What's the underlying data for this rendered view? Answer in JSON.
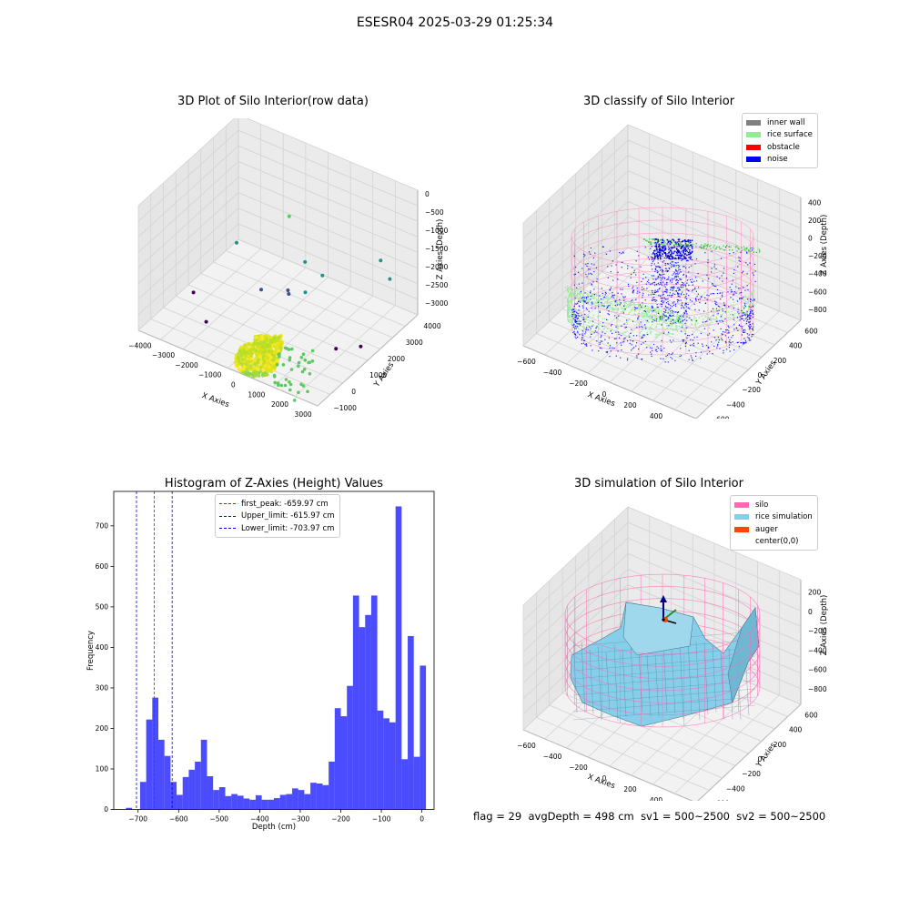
{
  "suptitle": "ESESR04 2025-03-29 01:25:34",
  "chart_data": [
    {
      "type": "scatter",
      "title": "3D Plot of Silo Interior(row data)",
      "xlabel": "X Axies",
      "ylabel": "Y Axies",
      "zlabel": "Z Axies (Depth)",
      "xticks": [
        "−4000",
        "−3000",
        "−2000",
        "−1000",
        "0",
        "1000",
        "2000",
        "3000"
      ],
      "yticks": [
        "−1000",
        "0",
        "1000",
        "2000",
        "3000",
        "4000"
      ],
      "zticks": [
        "0",
        "−500",
        "−1000",
        "−1500",
        "−2000",
        "−2500",
        "−3000"
      ],
      "xlim": [
        -4300,
        3500
      ],
      "ylim": [
        -1300,
        4300
      ],
      "zlim": [
        -3300,
        100
      ],
      "colormap": "viridis",
      "points": [
        {
          "x": -300,
          "y": 2000,
          "z": -600
        },
        {
          "x": 2900,
          "y": 3000,
          "z": -1400
        },
        {
          "x": 3300,
          "y": 3000,
          "z": -1800
        },
        {
          "x": -2200,
          "y": 1500,
          "z": -1600
        },
        {
          "x": -3300,
          "y": 500,
          "z": -2800
        },
        {
          "x": 3200,
          "y": 1500,
          "z": -3000
        },
        {
          "x": -200,
          "y": 1800,
          "z": -2500
        },
        {
          "x": -900,
          "y": 1200,
          "z": -2400
        },
        {
          "x": 700,
          "y": 1600,
          "z": -1400
        },
        {
          "x": 1300,
          "y": 1800,
          "z": -1700
        },
        {
          "x": -2200,
          "y": -200,
          "z": -3000
        },
        {
          "x": 2900,
          "y": 500,
          "z": -2700
        },
        {
          "x": 1100,
          "y": 1100,
          "z": -1900
        },
        {
          "x": 300,
          "y": 1200,
          "z": -2200
        }
      ]
    },
    {
      "type": "scatter",
      "title": "3D classify of Silo Interior",
      "xlabel": "X Axies",
      "ylabel": "Y Axies",
      "zlabel": "Z Axies (Depth)",
      "xticks": [
        "−600",
        "−400",
        "−200",
        "0",
        "200",
        "400",
        "600"
      ],
      "yticks": [
        "−600",
        "−400",
        "−200",
        "0",
        "200",
        "400",
        "600"
      ],
      "zticks": [
        "400",
        "200",
        "0",
        "−200",
        "−400",
        "−600",
        "−800"
      ],
      "legend": [
        {
          "label": "inner wall",
          "color": "#808080"
        },
        {
          "label": "rice surface",
          "color": "#90ee90"
        },
        {
          "label": "obstacle",
          "color": "#ff0000"
        },
        {
          "label": "noise",
          "color": "#0000ff"
        }
      ],
      "legend_position": "top-right"
    },
    {
      "type": "bar",
      "title": "Histogram of Z-Axies (Height) Values",
      "xlabel": "Depth (cm)",
      "ylabel": "Frequency",
      "xlim": [
        -760,
        30
      ],
      "ylim": [
        0,
        785
      ],
      "xticks": [
        -700,
        -600,
        -500,
        -400,
        -300,
        -200,
        -100,
        0
      ],
      "yticks": [
        0,
        100,
        200,
        300,
        400,
        500,
        600,
        700
      ],
      "bar_color": "#0000ff",
      "bins": [
        {
          "x0": -730,
          "x1": -715,
          "y": 4
        },
        {
          "x0": -695,
          "x1": -680,
          "y": 68
        },
        {
          "x0": -680,
          "x1": -665,
          "y": 222
        },
        {
          "x0": -665,
          "x1": -650,
          "y": 276
        },
        {
          "x0": -650,
          "x1": -635,
          "y": 172
        },
        {
          "x0": -635,
          "x1": -620,
          "y": 132
        },
        {
          "x0": -620,
          "x1": -605,
          "y": 68
        },
        {
          "x0": -605,
          "x1": -590,
          "y": 36
        },
        {
          "x0": -590,
          "x1": -575,
          "y": 80
        },
        {
          "x0": -575,
          "x1": -560,
          "y": 98
        },
        {
          "x0": -560,
          "x1": -545,
          "y": 118
        },
        {
          "x0": -545,
          "x1": -530,
          "y": 172
        },
        {
          "x0": -530,
          "x1": -515,
          "y": 82
        },
        {
          "x0": -515,
          "x1": -500,
          "y": 48
        },
        {
          "x0": -500,
          "x1": -485,
          "y": 55
        },
        {
          "x0": -485,
          "x1": -470,
          "y": 33
        },
        {
          "x0": -470,
          "x1": -455,
          "y": 38
        },
        {
          "x0": -455,
          "x1": -440,
          "y": 34
        },
        {
          "x0": -440,
          "x1": -425,
          "y": 27
        },
        {
          "x0": -425,
          "x1": -410,
          "y": 24
        },
        {
          "x0": -410,
          "x1": -395,
          "y": 35
        },
        {
          "x0": -395,
          "x1": -380,
          "y": 24
        },
        {
          "x0": -380,
          "x1": -365,
          "y": 24
        },
        {
          "x0": -365,
          "x1": -350,
          "y": 28
        },
        {
          "x0": -350,
          "x1": -335,
          "y": 36
        },
        {
          "x0": -335,
          "x1": -320,
          "y": 38
        },
        {
          "x0": -320,
          "x1": -305,
          "y": 52
        },
        {
          "x0": -305,
          "x1": -290,
          "y": 48
        },
        {
          "x0": -290,
          "x1": -275,
          "y": 38
        },
        {
          "x0": -275,
          "x1": -260,
          "y": 66
        },
        {
          "x0": -260,
          "x1": -245,
          "y": 64
        },
        {
          "x0": -245,
          "x1": -230,
          "y": 60
        },
        {
          "x0": -230,
          "x1": -215,
          "y": 118
        },
        {
          "x0": -215,
          "x1": -200,
          "y": 250
        },
        {
          "x0": -200,
          "x1": -185,
          "y": 230
        },
        {
          "x0": -185,
          "x1": -170,
          "y": 305
        },
        {
          "x0": -170,
          "x1": -155,
          "y": 528
        },
        {
          "x0": -155,
          "x1": -140,
          "y": 450
        },
        {
          "x0": -140,
          "x1": -125,
          "y": 480
        },
        {
          "x0": -125,
          "x1": -110,
          "y": 528
        },
        {
          "x0": -110,
          "x1": -95,
          "y": 244
        },
        {
          "x0": -95,
          "x1": -80,
          "y": 225
        },
        {
          "x0": -80,
          "x1": -65,
          "y": 215
        },
        {
          "x0": -65,
          "x1": -50,
          "y": 748
        },
        {
          "x0": -50,
          "x1": -35,
          "y": 124
        },
        {
          "x0": -35,
          "x1": -20,
          "y": 428
        },
        {
          "x0": -20,
          "x1": -5,
          "y": 130
        },
        {
          "x0": -5,
          "x1": 10,
          "y": 355
        }
      ],
      "reference_lines": [
        {
          "label": "first_peak: -659.97 cm",
          "x": -659.97,
          "color": "#ff0000"
        },
        {
          "label": "Upper_limit: -615.97 cm",
          "x": -615.97,
          "color": "#0000ff"
        },
        {
          "label": "Lower_limit: -703.97 cm",
          "x": -703.97,
          "color": "#0000ff"
        }
      ],
      "legend_position": "top-center"
    },
    {
      "type": "area",
      "title": "3D simulation of Silo Interior",
      "xlabel": "X Axies",
      "ylabel": "Y Axies",
      "zlabel": "Z Axies (Depth)",
      "xticks": [
        "−600",
        "−400",
        "−200",
        "0",
        "200",
        "400",
        "600"
      ],
      "yticks": [
        "−600",
        "−400",
        "−200",
        "0",
        "200",
        "400",
        "600"
      ],
      "zticks": [
        "200",
        "0",
        "−200",
        "−400",
        "−600",
        "−800"
      ],
      "legend": [
        {
          "label": "silo",
          "color": "#ff69b4"
        },
        {
          "label": "rice simulation",
          "color": "#87ceeb"
        },
        {
          "label": "auger",
          "color": "#ff4500"
        },
        {
          "label": "center(0,0)",
          "color": "#ffffff"
        }
      ],
      "legend_position": "top-right"
    }
  ],
  "footer": {
    "flag": "flag = 29",
    "avg_depth": "avgDepth = 498 cm",
    "sv1": "sv1 = 500~2500",
    "sv2": "sv2 = 500~2500"
  }
}
